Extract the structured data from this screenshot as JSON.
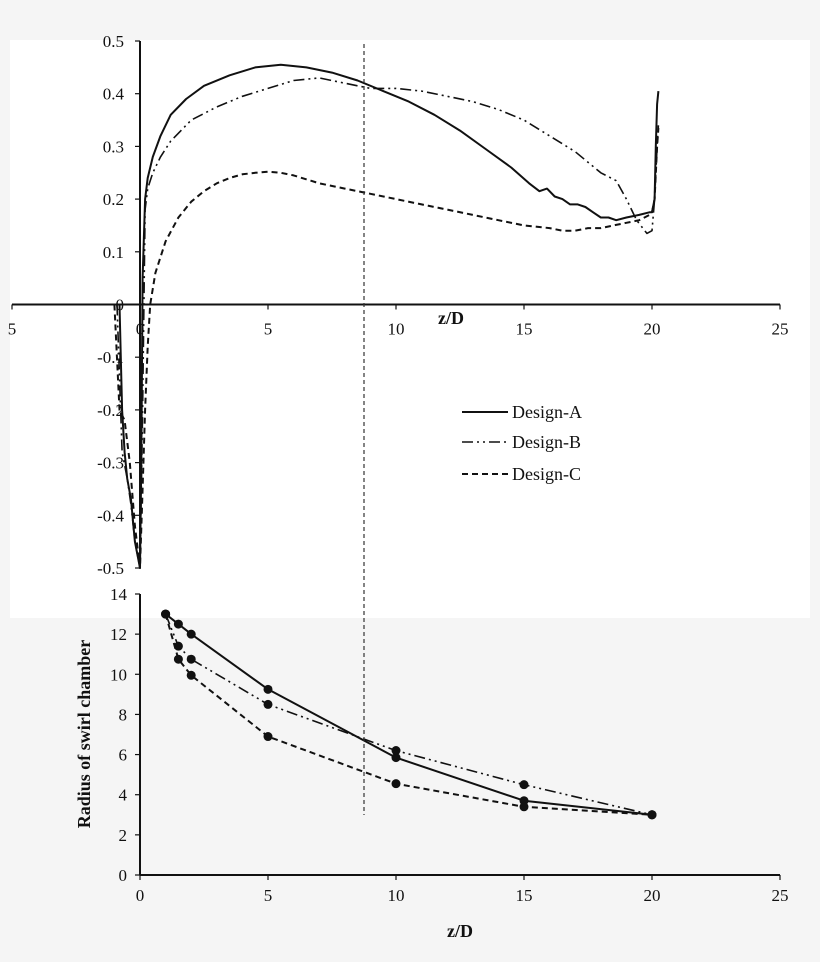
{
  "chart_data": [
    {
      "type": "line",
      "xlabel": "z/D",
      "ylabel": "",
      "xlim": [
        -5,
        25
      ],
      "ylim": [
        -0.5,
        0.5
      ],
      "x_ticks": [
        "5",
        "0",
        "5",
        "10",
        "15",
        "20",
        "25"
      ],
      "y_ticks": [
        "0.5",
        "0.4",
        "0.3",
        "0.2",
        "0.1",
        "0",
        "-0.1",
        "-0.2",
        "-0.3",
        "-0.4",
        "-0.5"
      ],
      "reference_line_x": 8.75,
      "legend": [
        "Design-A",
        "Design-B",
        "Design-C"
      ],
      "series": [
        {
          "name": "Design-A",
          "style": "solid",
          "x": [
            -0.8,
            -0.7,
            -0.6,
            -0.5,
            -0.35,
            -0.2,
            0,
            0.05,
            0.1,
            0.2,
            0.3,
            0.5,
            0.8,
            1.2,
            1.8,
            2.5,
            3.5,
            4.5,
            5.5,
            6.5,
            7.5,
            8.5,
            9.5,
            10.5,
            11.5,
            12.5,
            13.5,
            14.5,
            15.2,
            15.6,
            15.9,
            16.2,
            16.5,
            16.8,
            17.1,
            17.4,
            17.7,
            18.0,
            18.3,
            18.6,
            19.0,
            19.5,
            19.9,
            20.0,
            20.1,
            20.15,
            20.2,
            20.25
          ],
          "y": [
            0.0,
            -0.2,
            -0.28,
            -0.33,
            -0.37,
            -0.45,
            -0.5,
            -0.3,
            0.05,
            0.2,
            0.24,
            0.28,
            0.32,
            0.36,
            0.39,
            0.415,
            0.435,
            0.45,
            0.455,
            0.45,
            0.44,
            0.425,
            0.405,
            0.385,
            0.36,
            0.33,
            0.295,
            0.26,
            0.23,
            0.215,
            0.22,
            0.205,
            0.2,
            0.19,
            0.19,
            0.185,
            0.175,
            0.165,
            0.165,
            0.16,
            0.165,
            0.17,
            0.175,
            0.175,
            0.2,
            0.3,
            0.38,
            0.405
          ]
        },
        {
          "name": "Design-B",
          "style": "dash-dot-dot",
          "x": [
            -0.9,
            -0.7,
            -0.5,
            -0.35,
            -0.2,
            0,
            0.1,
            0.2,
            0.3,
            0.5,
            0.8,
            1.2,
            2.0,
            3.0,
            4.0,
            5.0,
            6.0,
            7.0,
            8.0,
            9.0,
            10.0,
            11.0,
            12.0,
            13.0,
            14.0,
            15.0,
            16.0,
            17.0,
            18.0,
            18.6,
            19.0,
            19.4,
            19.8,
            20.0,
            20.1,
            20.2,
            20.25
          ],
          "y": [
            0.0,
            -0.28,
            -0.33,
            -0.38,
            -0.45,
            -0.5,
            -0.2,
            0.18,
            0.22,
            0.25,
            0.28,
            0.31,
            0.35,
            0.375,
            0.395,
            0.41,
            0.425,
            0.43,
            0.42,
            0.41,
            0.41,
            0.405,
            0.395,
            0.385,
            0.37,
            0.35,
            0.32,
            0.29,
            0.25,
            0.235,
            0.2,
            0.16,
            0.135,
            0.14,
            0.2,
            0.3,
            0.34
          ]
        },
        {
          "name": "Design-C",
          "style": "dashed",
          "x": [
            -1.0,
            -0.8,
            -0.6,
            -0.4,
            -0.2,
            0,
            0.1,
            0.2,
            0.3,
            0.4,
            0.6,
            1.0,
            1.5,
            2.0,
            2.5,
            3.0,
            3.5,
            4.0,
            4.5,
            5.0,
            5.5,
            6.0,
            7.0,
            8.0,
            9.0,
            10.0,
            11.0,
            12.0,
            13.0,
            14.0,
            15.0,
            16.0,
            16.5,
            17.0,
            17.5,
            18.0,
            18.5,
            19.0,
            19.5,
            19.9,
            20.0,
            20.1,
            20.2,
            20.25
          ],
          "y": [
            0.0,
            -0.2,
            -0.22,
            -0.3,
            -0.42,
            -0.5,
            -0.35,
            -0.2,
            -0.08,
            0.0,
            0.06,
            0.12,
            0.165,
            0.195,
            0.215,
            0.23,
            0.24,
            0.247,
            0.25,
            0.252,
            0.25,
            0.245,
            0.23,
            0.22,
            0.21,
            0.2,
            0.19,
            0.18,
            0.17,
            0.16,
            0.15,
            0.145,
            0.14,
            0.14,
            0.145,
            0.145,
            0.15,
            0.155,
            0.16,
            0.17,
            0.175,
            0.2,
            0.3,
            0.335
          ]
        }
      ]
    },
    {
      "type": "line",
      "xlabel": "z/D",
      "ylabel": "Radius of swirl chamber",
      "xlim": [
        0,
        25
      ],
      "ylim": [
        0,
        14
      ],
      "x_ticks": [
        "0",
        "5",
        "10",
        "15",
        "20",
        "25"
      ],
      "y_ticks": [
        "0",
        "2",
        "4",
        "6",
        "8",
        "10",
        "12",
        "14"
      ],
      "series": [
        {
          "name": "Design-A",
          "style": "solid",
          "x": [
            1,
            1.5,
            2,
            5,
            10,
            15,
            20
          ],
          "y": [
            13,
            12.5,
            12,
            9.25,
            5.85,
            3.7,
            3.0
          ]
        },
        {
          "name": "Design-B",
          "style": "dash-dot-dot",
          "x": [
            1,
            1.5,
            2,
            5,
            10,
            15,
            20
          ],
          "y": [
            13,
            11.4,
            10.75,
            8.5,
            6.2,
            4.5,
            3.0
          ]
        },
        {
          "name": "Design-C",
          "style": "dashed",
          "x": [
            1,
            1.5,
            2,
            5,
            10,
            15,
            20
          ],
          "y": [
            13,
            10.75,
            9.95,
            6.9,
            4.55,
            3.4,
            3.0
          ]
        }
      ]
    }
  ]
}
